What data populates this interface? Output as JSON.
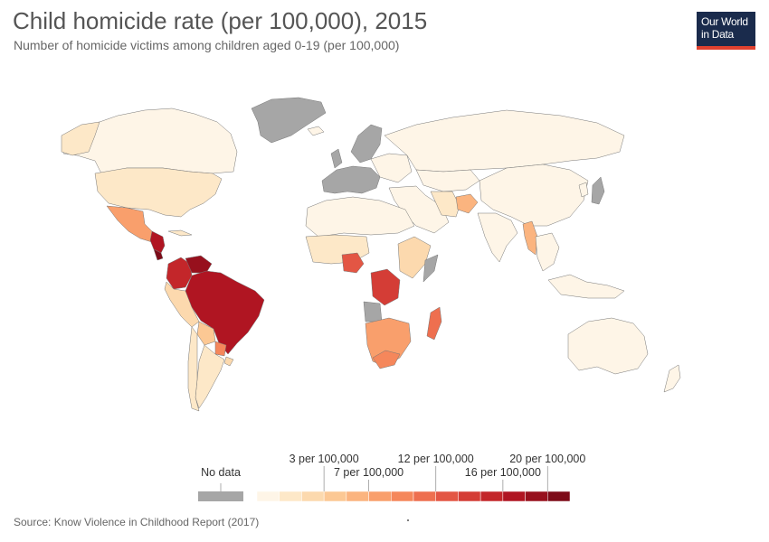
{
  "title": "Child homicide rate (per 100,000), 2015",
  "subtitle": "Number of homicide victims among children aged 0-19 (per 100,000)",
  "logo": {
    "line1": "Our World",
    "line2": "in Data"
  },
  "legend": {
    "no_data_label": "No data",
    "no_data_color": "#a6a6a6",
    "colors": [
      "#fef5e7",
      "#fde8c8",
      "#fcd9ae",
      "#fcc894",
      "#fbb47f",
      "#f99f6c",
      "#f5875b",
      "#ee6f4f",
      "#e35644",
      "#d43d36",
      "#c3262a",
      "#b01522",
      "#97101d",
      "#7d0b18"
    ],
    "tick_labels": [
      {
        "text": "3 per 100,000",
        "index": 3,
        "row": "upper"
      },
      {
        "text": "7 per 100,000",
        "index": 5,
        "row": "lower"
      },
      {
        "text": "12 per 100,000",
        "index": 8,
        "row": "upper"
      },
      {
        "text": "16 per 100,000",
        "index": 11,
        "row": "lower"
      },
      {
        "text": "20 per 100,000",
        "index": 13,
        "row": "upper"
      }
    ]
  },
  "source": "Source: Know Violence in Childhood Report (2017)"
}
